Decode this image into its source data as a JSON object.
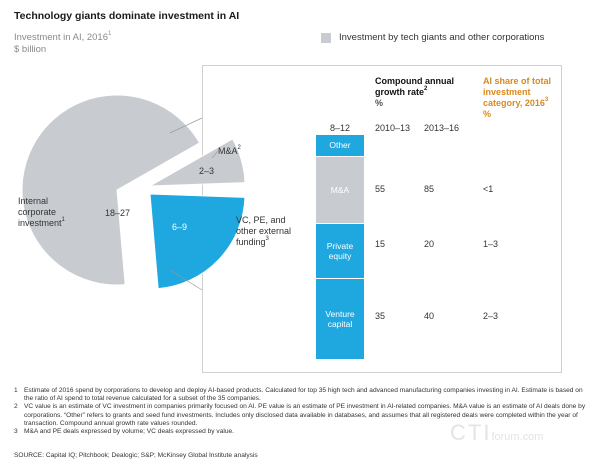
{
  "title": "Technology giants dominate investment in AI",
  "subtitle": "Investment in AI, 2016",
  "subtitle_note": "1",
  "unit": "$ billion",
  "legend": {
    "label": "Investment by tech giants and other corporations",
    "color": "#c8ccd0"
  },
  "colors": {
    "gray": "#c8ccd0",
    "blue": "#1fa7df",
    "orange": "#d98a1f"
  },
  "chart_data": [
    {
      "type": "pie",
      "title": "Investment in AI, 2016 ($ billion)",
      "slices": [
        {
          "name": "Internal corporate investment",
          "note": "1",
          "range": "18–27",
          "low": 18,
          "high": 27,
          "value": 22.5,
          "color": "#c8ccd0"
        },
        {
          "name": "M&A",
          "note": "2",
          "range": "2–3",
          "low": 2,
          "high": 3,
          "value": 2.5,
          "color": "#c8ccd0"
        },
        {
          "name": "VC, PE, and other external funding",
          "note": "3",
          "range": "6–9",
          "low": 6,
          "high": 9,
          "value": 7.5,
          "color": "#1fa7df"
        }
      ]
    },
    {
      "type": "table",
      "stack_total": "8–12",
      "segments": [
        {
          "name": "Other",
          "value": 0.8,
          "color": "#1fa7df"
        },
        {
          "name": "M&A",
          "value": 2.5,
          "color": "#c8ccd0"
        },
        {
          "name": "Private equity",
          "value": 2.0,
          "color": "#1fa7df"
        },
        {
          "name": "Venture capital",
          "value": 3.0,
          "color": "#1fa7df"
        }
      ],
      "headers": {
        "cagr": "Compound annual growth rate",
        "cagr_note": "2",
        "pct": "%",
        "p1": "2010–13",
        "p2": "2013–16",
        "share": "AI share of total investment category, 2016",
        "share_note": "3"
      },
      "rows": [
        {
          "name": "M&A",
          "cagr_2010_13": "55",
          "cagr_2013_16": "85",
          "ai_share": "<1"
        },
        {
          "name": "Private equity",
          "cagr_2010_13": "15",
          "cagr_2013_16": "20",
          "ai_share": "1–3"
        },
        {
          "name": "Venture capital",
          "cagr_2010_13": "35",
          "cagr_2013_16": "40",
          "ai_share": "2–3"
        }
      ]
    }
  ],
  "footnotes": [
    {
      "num": "1",
      "text": "Estimate of 2016 spend by corporations to develop and deploy AI-based products. Calculated for top 35 high tech and advanced manufacturing companies investing in AI. Estimate is based on the ratio of AI spend to total revenue calculated for a subset of the 35 companies."
    },
    {
      "num": "2",
      "text": "VC value is an estimate of VC investment in companies primarily focused on AI. PE value is an estimate of PE investment in AI-related companies. M&A value is an estimate of AI deals done by corporations. “Other” refers to grants and seed fund investments. Includes only disclosed data available in databases, and assumes that all registered deals were completed within the year of transaction. Compound annual growth rate values rounded."
    },
    {
      "num": "3",
      "text": "M&A and PE deals expressed by volume; VC deals expressed by value."
    }
  ],
  "source": "SOURCE: Capital IQ; Pitchbook; Dealogic; S&P; McKinsey Global Institute analysis",
  "watermark": {
    "main": "CTI",
    "sub": "forum.com"
  }
}
